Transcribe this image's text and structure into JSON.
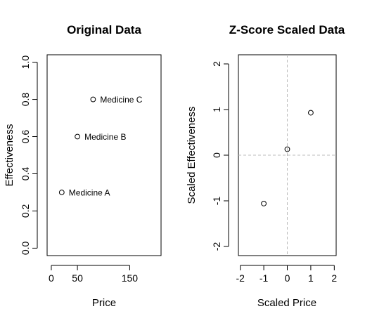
{
  "chart_data": [
    {
      "type": "scatter",
      "title": "Original Data",
      "xlabel": "Price",
      "ylabel": "Effectiveness",
      "xlim": [
        -8,
        210
      ],
      "ylim": [
        -0.04,
        1.04
      ],
      "x_ticks": [
        0,
        50,
        150
      ],
      "x_tick_labels": [
        "0",
        "50",
        "150"
      ],
      "y_ticks": [
        0.0,
        0.2,
        0.4,
        0.6,
        0.8,
        1.0
      ],
      "y_tick_labels": [
        "0.0",
        "0.2",
        "0.4",
        "0.6",
        "0.8",
        "1.0"
      ],
      "points": [
        {
          "x": 20,
          "y": 0.3,
          "label": "Medicine A"
        },
        {
          "x": 50,
          "y": 0.6,
          "label": "Medicine B"
        },
        {
          "x": 80,
          "y": 0.8,
          "label": "Medicine C"
        }
      ],
      "grid": false
    },
    {
      "type": "scatter",
      "title": "Z-Score Scaled Data",
      "xlabel": "Scaled Price",
      "ylabel": "Scaled Effectiveness",
      "xlim": [
        -2.08,
        2.08
      ],
      "ylim": [
        -2.2,
        2.2
      ],
      "x_ticks": [
        -2,
        -1,
        0,
        1,
        2
      ],
      "x_tick_labels": [
        "-2",
        "-1",
        "0",
        "1",
        "2"
      ],
      "y_ticks": [
        -2,
        -1,
        0,
        1,
        2
      ],
      "y_tick_labels": [
        "-2",
        "-1",
        "0",
        "1",
        "2"
      ],
      "points": [
        {
          "x": -1.0,
          "y": -1.06
        },
        {
          "x": 0.0,
          "y": 0.13
        },
        {
          "x": 1.0,
          "y": 0.93
        }
      ],
      "reference_lines": {
        "x": 0,
        "y": 0,
        "color": "#bdbdbd",
        "style": "dashed"
      },
      "grid": false
    }
  ]
}
